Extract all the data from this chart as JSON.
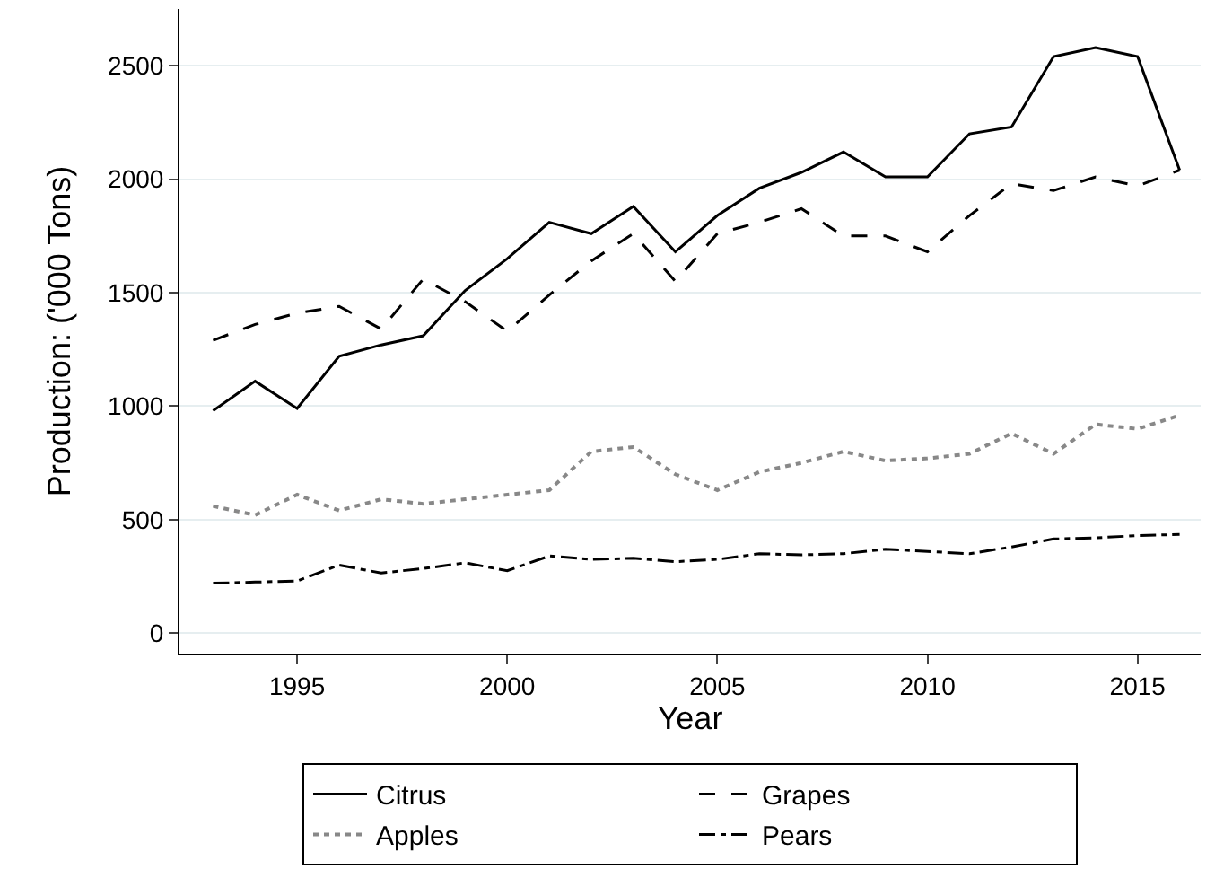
{
  "chart_data": {
    "type": "line",
    "xlabel": "Year",
    "ylabel": "Production: ('000 Tons)",
    "x": [
      1993,
      1994,
      1995,
      1996,
      1997,
      1998,
      1999,
      2000,
      2001,
      2002,
      2003,
      2004,
      2005,
      2006,
      2007,
      2008,
      2009,
      2010,
      2011,
      2012,
      2013,
      2014,
      2015,
      2016
    ],
    "series": [
      {
        "name": "Citrus",
        "color": "#000000",
        "line_style": "solid",
        "values": [
          980,
          1110,
          990,
          1220,
          1270,
          1310,
          1510,
          1650,
          1810,
          1760,
          1880,
          1680,
          1840,
          1960,
          2030,
          2120,
          2010,
          2010,
          2200,
          2230,
          2540,
          2580,
          2540,
          2040
        ]
      },
      {
        "name": "Grapes",
        "color": "#000000",
        "line_style": "dashed",
        "values": [
          1290,
          1360,
          1410,
          1440,
          1340,
          1560,
          1460,
          1330,
          1490,
          1640,
          1760,
          1550,
          1760,
          1810,
          1870,
          1750,
          1750,
          1680,
          1840,
          1980,
          1950,
          2010,
          1970,
          2040
        ]
      },
      {
        "name": "Apples",
        "color": "#888888",
        "line_style": "dotted",
        "values": [
          560,
          520,
          610,
          540,
          590,
          570,
          590,
          610,
          630,
          800,
          820,
          700,
          630,
          710,
          750,
          800,
          760,
          770,
          790,
          880,
          790,
          920,
          900,
          960
        ]
      },
      {
        "name": "Pears",
        "color": "#000000",
        "line_style": "dashdot",
        "values": [
          220,
          225,
          230,
          300,
          265,
          285,
          310,
          275,
          340,
          325,
          330,
          315,
          325,
          350,
          345,
          350,
          370,
          360,
          350,
          380,
          415,
          420,
          430,
          435
        ]
      }
    ],
    "xlim": [
      1992.2,
      2016.5
    ],
    "xticks": [
      1995,
      2000,
      2005,
      2010,
      2015
    ],
    "ylim": [
      -90,
      2750
    ],
    "yticks": [
      0,
      500,
      1000,
      1500,
      2000,
      2500
    ],
    "grid": "y",
    "legend": "bottom",
    "marker": "none"
  }
}
